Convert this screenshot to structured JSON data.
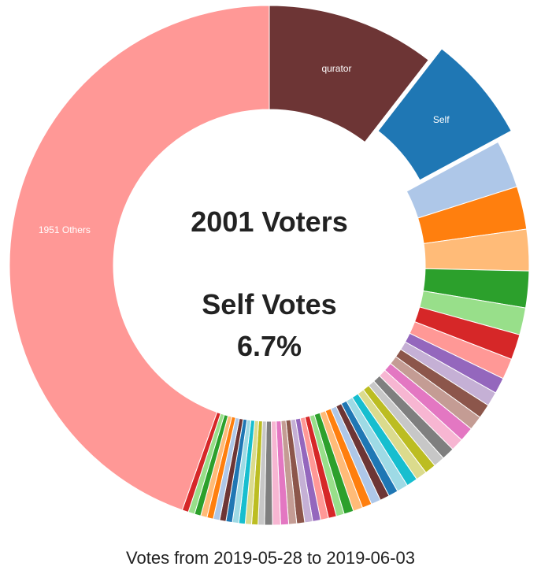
{
  "chart_data": {
    "type": "pie",
    "title": "",
    "center": {
      "voters_line": "2001 Voters",
      "self_line1": "Self Votes",
      "self_line2": "6.7%"
    },
    "caption": "Votes from 2019-05-28 to 2019-06-03",
    "slices": [
      {
        "label": "qurator",
        "value": 10.6,
        "color": "#6d3535"
      },
      {
        "label": "Self",
        "value": 6.7,
        "color": "#1f77b4",
        "exploded": true
      },
      {
        "label": "",
        "value": 3.0,
        "color": "#aec7e8"
      },
      {
        "label": "",
        "value": 2.7,
        "color": "#ff7f0e"
      },
      {
        "label": "",
        "value": 2.6,
        "color": "#ffbb78"
      },
      {
        "label": "",
        "value": 2.3,
        "color": "#2ca02c"
      },
      {
        "label": "",
        "value": 1.7,
        "color": "#98df8a"
      },
      {
        "label": "",
        "value": 1.6,
        "color": "#d62728"
      },
      {
        "label": "",
        "value": 1.3,
        "color": "#ff9896"
      },
      {
        "label": "",
        "value": 1.0,
        "color": "#9467bd"
      },
      {
        "label": "",
        "value": 0.9,
        "color": "#c5b0d5"
      },
      {
        "label": "",
        "value": 0.9,
        "color": "#8c564b"
      },
      {
        "label": "",
        "value": 0.9,
        "color": "#c49c94"
      },
      {
        "label": "",
        "value": 0.9,
        "color": "#e377c2"
      },
      {
        "label": "",
        "value": 0.8,
        "color": "#f7b6d2"
      },
      {
        "label": "",
        "value": 0.8,
        "color": "#7f7f7f"
      },
      {
        "label": "",
        "value": 0.7,
        "color": "#c7c7c7"
      },
      {
        "label": "",
        "value": 0.7,
        "color": "#bcbd22"
      },
      {
        "label": "",
        "value": 0.7,
        "color": "#dbdb8d"
      },
      {
        "label": "",
        "value": 0.7,
        "color": "#17becf"
      },
      {
        "label": "",
        "value": 0.7,
        "color": "#9edae5"
      },
      {
        "label": "",
        "value": 0.6,
        "color": "#1f77b4"
      },
      {
        "label": "",
        "value": 0.6,
        "color": "#6d3535"
      },
      {
        "label": "",
        "value": 0.6,
        "color": "#aec7e8"
      },
      {
        "label": "",
        "value": 0.6,
        "color": "#ff7f0e"
      },
      {
        "label": "",
        "value": 0.6,
        "color": "#ffbb78"
      },
      {
        "label": "",
        "value": 0.6,
        "color": "#2ca02c"
      },
      {
        "label": "",
        "value": 0.5,
        "color": "#98df8a"
      },
      {
        "label": "",
        "value": 0.5,
        "color": "#d62728"
      },
      {
        "label": "",
        "value": 0.5,
        "color": "#ff9896"
      },
      {
        "label": "",
        "value": 0.5,
        "color": "#9467bd"
      },
      {
        "label": "",
        "value": 0.5,
        "color": "#c5b0d5"
      },
      {
        "label": "",
        "value": 0.5,
        "color": "#8c564b"
      },
      {
        "label": "",
        "value": 0.5,
        "color": "#c49c94"
      },
      {
        "label": "",
        "value": 0.5,
        "color": "#e377c2"
      },
      {
        "label": "",
        "value": 0.5,
        "color": "#f7b6d2"
      },
      {
        "label": "",
        "value": 0.5,
        "color": "#7f7f7f"
      },
      {
        "label": "",
        "value": 0.4,
        "color": "#c7c7c7"
      },
      {
        "label": "",
        "value": 0.4,
        "color": "#bcbd22"
      },
      {
        "label": "",
        "value": 0.4,
        "color": "#dbdb8d"
      },
      {
        "label": "",
        "value": 0.4,
        "color": "#17becf"
      },
      {
        "label": "",
        "value": 0.4,
        "color": "#9edae5"
      },
      {
        "label": "",
        "value": 0.4,
        "color": "#1f77b4"
      },
      {
        "label": "",
        "value": 0.4,
        "color": "#6d3535"
      },
      {
        "label": "",
        "value": 0.4,
        "color": "#aec7e8"
      },
      {
        "label": "",
        "value": 0.4,
        "color": "#ff7f0e"
      },
      {
        "label": "",
        "value": 0.4,
        "color": "#ffbb78"
      },
      {
        "label": "",
        "value": 0.4,
        "color": "#2ca02c"
      },
      {
        "label": "",
        "value": 0.4,
        "color": "#98df8a"
      },
      {
        "label": "",
        "value": 0.4,
        "color": "#d62728"
      },
      {
        "label": "1951 Others",
        "value": 45.0,
        "color": "#ff9896"
      }
    ]
  }
}
